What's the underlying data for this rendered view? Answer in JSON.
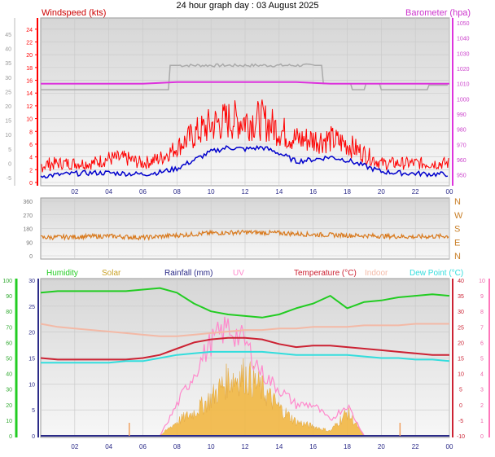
{
  "title": "24 hour graph day : 03 August 2025",
  "colors": {
    "wind": "#ff0000",
    "gust_outline": "#b22222",
    "avg_wind": "#0000cc",
    "baro": "#dd33dd",
    "baro_grey": "#aaaaaa",
    "winddir": "#d97a1e",
    "humidity": "#22cc22",
    "solar": "#f2b844",
    "rainfall": "#2b2b88",
    "uv": "#ff88cc",
    "temperature": "#cc2233",
    "indoor": "#f3b9a6",
    "dewpoint": "#33dddd"
  },
  "x_ticks": [
    "02",
    "04",
    "06",
    "08",
    "10",
    "12",
    "14",
    "16",
    "18",
    "20",
    "22",
    "00"
  ],
  "chart_data": [
    {
      "type": "line",
      "panel": "wind",
      "left_label": "Windspeed (kts)",
      "right_label": "Barometer (hpa)",
      "left_axis_ticks": [
        24,
        22,
        20,
        18,
        16,
        14,
        12,
        10,
        8,
        6,
        4,
        2,
        0
      ],
      "left_axis_ticks_outer": [
        "45",
        "40",
        "35",
        "30",
        "25",
        "20",
        "15",
        "10",
        "5",
        "0",
        "-5"
      ],
      "right_axis_ticks": [
        1050,
        1040,
        1030,
        1020,
        1010,
        1000,
        990,
        980,
        970,
        960,
        950
      ],
      "ylim_left": [
        0,
        25
      ],
      "ylim_right": [
        945,
        1050
      ],
      "x_hours": [
        0,
        1,
        2,
        3,
        4,
        5,
        6,
        7,
        8,
        9,
        10,
        11,
        12,
        13,
        14,
        15,
        16,
        17,
        18,
        19,
        20,
        21,
        22,
        23,
        24
      ],
      "series": [
        {
          "name": "Windspeed (kts)",
          "role": "gust",
          "values": [
            3,
            3,
            3,
            3,
            4,
            4,
            3,
            4,
            6,
            9,
            11,
            12,
            12,
            12,
            10,
            8,
            8,
            8,
            7,
            5,
            3,
            3,
            3,
            3,
            3
          ]
        },
        {
          "name": "Windspeed (kts)",
          "role": "wind",
          "values": [
            1.5,
            2,
            2,
            2,
            2.5,
            2.5,
            2,
            2.5,
            4,
            5,
            6,
            6.5,
            6.5,
            6.5,
            5.5,
            4.5,
            4.5,
            4.5,
            4,
            3,
            2,
            2,
            2,
            2,
            2
          ]
        },
        {
          "name": "",
          "role": "average",
          "values": [
            1,
            1.2,
            1.4,
            1.5,
            1.5,
            1.4,
            1.3,
            1.6,
            2.2,
            3.5,
            4.8,
            5.5,
            5.2,
            5.5,
            4.6,
            3.3,
            3.6,
            4,
            3.5,
            2.6,
            1.7,
            1.5,
            1.4,
            1.3,
            1.3
          ]
        },
        {
          "name": "Barometer (hpa)",
          "role": "barometer",
          "values": [
            1010,
            1010,
            1010,
            1010,
            1010,
            1010,
            1010,
            1010.5,
            1011,
            1011,
            1011,
            1011,
            1011,
            1011,
            1011,
            1011,
            1010.5,
            1010,
            1010,
            1010,
            1010,
            1010,
            1010,
            1010,
            1010
          ]
        }
      ]
    },
    {
      "type": "line",
      "panel": "winddir",
      "left_axis_ticks": [
        360,
        270,
        180,
        90,
        0
      ],
      "right_axis_ticks": [
        "N",
        "W",
        "S",
        "E",
        "N"
      ],
      "ylim": [
        0,
        360
      ],
      "x_hours": [
        0,
        2,
        4,
        6,
        8,
        10,
        12,
        14,
        16,
        18,
        20,
        22,
        24
      ],
      "series": [
        {
          "name": "",
          "values": [
            120,
            125,
            130,
            120,
            135,
            150,
            155,
            150,
            140,
            135,
            130,
            125,
            130
          ]
        }
      ]
    },
    {
      "type": "area",
      "panel": "env",
      "legend": [
        "Humidity",
        "Solar",
        "Rainfall (mm)",
        "UV",
        "Temperature (°C)",
        "Indoor",
        "Dew Point (°C)"
      ],
      "left_humidity_ticks": [
        100,
        90,
        80,
        70,
        60,
        50,
        40,
        30,
        20,
        10,
        0
      ],
      "left_rain_ticks": [
        30,
        25,
        20,
        15,
        10,
        5,
        0
      ],
      "right_temp_ticks": [
        40,
        35,
        30,
        25,
        20,
        15,
        10,
        5,
        0,
        -5,
        -10
      ],
      "right_uv_ticks": [
        10,
        9,
        8,
        7,
        6,
        5,
        4,
        3,
        2,
        1,
        0
      ],
      "ylim_humidity": [
        0,
        100
      ],
      "ylim_temperature": [
        -10,
        40
      ],
      "x_hours": [
        0,
        1,
        2,
        3,
        4,
        5,
        6,
        7,
        8,
        9,
        10,
        11,
        12,
        13,
        14,
        15,
        16,
        17,
        18,
        19,
        20,
        21,
        22,
        23,
        24
      ],
      "series": [
        {
          "name": "Humidity",
          "values": [
            92,
            93,
            93,
            93,
            93,
            93,
            94,
            95,
            92,
            85,
            80,
            78,
            77,
            76,
            78,
            82,
            85,
            90,
            82,
            86,
            87,
            89,
            90,
            91,
            90
          ]
        },
        {
          "name": "Temperature (°C)",
          "values": [
            15,
            14.5,
            14.5,
            14.5,
            14.5,
            14.5,
            15,
            16,
            18,
            20,
            21,
            21.5,
            21.5,
            21,
            19.5,
            18.5,
            19,
            19,
            18.5,
            18,
            17.5,
            17,
            16.5,
            16,
            16
          ]
        },
        {
          "name": "Dew Point (°C)",
          "values": [
            13.5,
            13.5,
            13.5,
            13.5,
            13.5,
            14,
            14,
            15,
            16,
            16.5,
            17,
            17,
            17,
            17,
            16.5,
            16,
            16,
            16,
            16,
            15.5,
            15,
            15,
            14.5,
            14.5,
            14
          ]
        },
        {
          "name": "Indoor",
          "values": [
            26,
            25,
            24.5,
            24,
            23.5,
            23,
            22.5,
            22,
            22,
            22.5,
            23,
            23.5,
            24,
            24,
            24.5,
            24.5,
            25,
            25,
            25,
            25.5,
            25.5,
            25.5,
            26,
            26,
            26
          ]
        },
        {
          "name": "UV",
          "values": [
            0,
            0,
            0,
            0,
            0,
            0,
            0,
            0,
            2,
            4,
            6,
            7,
            6,
            4,
            3,
            2,
            2,
            1,
            2,
            0,
            0,
            0,
            0,
            0,
            0
          ]
        },
        {
          "name": "Solar",
          "values": [
            0,
            0,
            0,
            0,
            0,
            0,
            0,
            0,
            3,
            5,
            8,
            12,
            13,
            10,
            6,
            3,
            2,
            1,
            5,
            0,
            0,
            0,
            0,
            0,
            0
          ]
        },
        {
          "name": "Rainfall (mm)",
          "values": [
            0,
            0,
            0,
            0,
            0,
            0,
            0,
            0,
            0,
            0,
            0,
            0,
            0,
            0,
            0,
            0,
            0,
            0,
            0,
            0,
            0,
            0,
            0,
            0,
            0
          ]
        }
      ]
    }
  ]
}
